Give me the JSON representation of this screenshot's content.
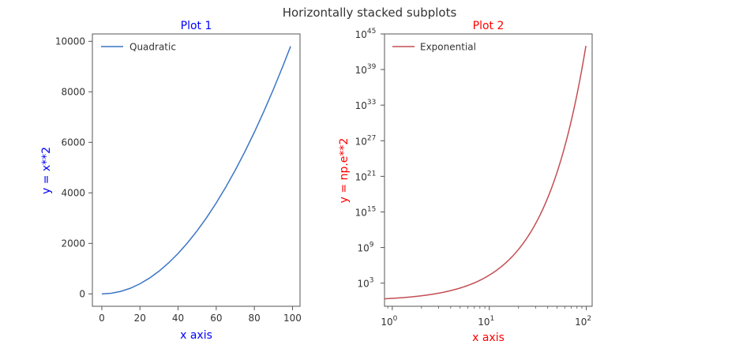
{
  "chart_data": [
    {
      "type": "line",
      "title": "Plot 1",
      "title_color": "#0000ff",
      "xlabel": "x axis",
      "ylabel": "y = x**2",
      "label_color": "#0000ff",
      "line_color": "#3b75c4",
      "series": [
        {
          "name": "Quadratic",
          "x": [
            0,
            5,
            10,
            15,
            20,
            25,
            30,
            35,
            40,
            45,
            50,
            55,
            60,
            65,
            70,
            75,
            80,
            85,
            90,
            95,
            99
          ],
          "values": [
            0,
            25,
            100,
            225,
            400,
            625,
            900,
            1225,
            1600,
            2025,
            2500,
            3025,
            3600,
            4225,
            4900,
            5625,
            6400,
            7225,
            8100,
            9025,
            9801
          ]
        }
      ],
      "xticks": [
        0,
        20,
        40,
        60,
        80,
        100
      ],
      "xtick_labels": [
        "0",
        "20",
        "40",
        "60",
        "80",
        "100"
      ],
      "yticks": [
        0,
        2000,
        4000,
        6000,
        8000,
        10000
      ],
      "ytick_labels": [
        "0",
        "2000",
        "4000",
        "6000",
        "8000",
        "10000"
      ],
      "xlim": [
        -4.95,
        103.95
      ],
      "ylim": [
        -490,
        10291
      ],
      "legend": "top-left"
    },
    {
      "type": "line",
      "title": "Plot 2",
      "title_color": "#ff0000",
      "xlabel": "x axis",
      "ylabel": "y = np.e**2",
      "label_color": "#ff0000",
      "line_color": "#c44e52",
      "xscale": "log",
      "yscale": "log",
      "series": [
        {
          "name": "Exponential",
          "x": [
            1,
            2,
            3,
            5,
            7,
            10,
            15,
            20,
            30,
            40,
            50,
            60,
            70,
            80,
            90,
            99
          ],
          "values": [
            2.718,
            7.389,
            20.09,
            148.4,
            1097,
            22026,
            3269000.0,
            485200000.0,
            10690000000000.0,
            2.354e+17,
            5.185e+21,
            1.142e+26,
            2.515e+30,
            5.541e+34,
            1.221e+39,
            9.889e+42
          ]
        }
      ],
      "xtick_base": "10",
      "xtick_exponents": [
        "0",
        "1",
        "2"
      ],
      "xticks": [
        1,
        10,
        100
      ],
      "ytick_base": "10",
      "ytick_exponents": [
        "3",
        "9",
        "15",
        "21",
        "27",
        "33",
        "39",
        "45"
      ],
      "yticks_log10": [
        3,
        9,
        15,
        21,
        27,
        33,
        39,
        45
      ],
      "xlim_log10": [
        -0.08,
        2.06
      ],
      "ylim_log10": [
        -0.9,
        45
      ],
      "legend": "top-left"
    }
  ],
  "figure": {
    "suptitle": "Horizontally stacked subplots"
  }
}
